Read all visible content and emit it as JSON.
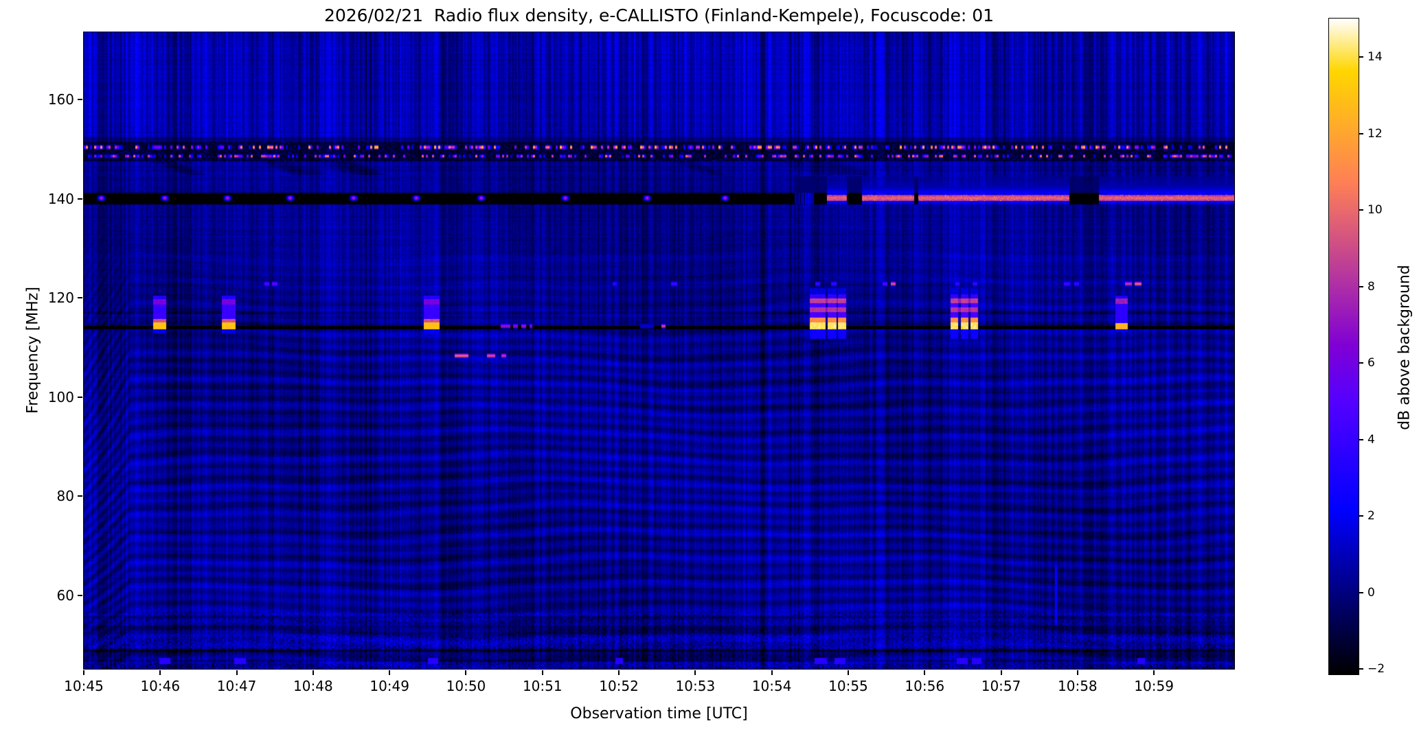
{
  "chart_data": {
    "type": "heatmap",
    "subtype": "radio-spectrogram",
    "title": "2026/02/21  Radio flux density, e-CALLISTO (Finland-Kempele), Focuscode: 01",
    "xlabel": "Observation time [UTC]",
    "ylabel": "Frequency [MHz]",
    "x_axis": {
      "start_label": "10:45",
      "range_minutes": [
        0,
        15.05
      ],
      "ticks": [
        {
          "label": "10:45",
          "t": 0
        },
        {
          "label": "10:46",
          "t": 1
        },
        {
          "label": "10:47",
          "t": 2
        },
        {
          "label": "10:48",
          "t": 3
        },
        {
          "label": "10:49",
          "t": 4
        },
        {
          "label": "10:50",
          "t": 5
        },
        {
          "label": "10:51",
          "t": 6
        },
        {
          "label": "10:52",
          "t": 7
        },
        {
          "label": "10:53",
          "t": 8
        },
        {
          "label": "10:54",
          "t": 9
        },
        {
          "label": "10:55",
          "t": 10
        },
        {
          "label": "10:56",
          "t": 11
        },
        {
          "label": "10:57",
          "t": 12
        },
        {
          "label": "10:58",
          "t": 13
        },
        {
          "label": "10:59",
          "t": 14
        }
      ]
    },
    "y_axis": {
      "range_mhz": [
        45.2,
        173.6
      ],
      "ticks": [
        {
          "label": "160",
          "f": 160
        },
        {
          "label": "140",
          "f": 140
        },
        {
          "label": "120",
          "f": 120
        },
        {
          "label": "100",
          "f": 100
        },
        {
          "label": "80",
          "f": 80
        },
        {
          "label": "60",
          "f": 60
        }
      ]
    },
    "colorbar": {
      "label": "dB above background",
      "colormap": "gnuplot2",
      "range_db": [
        -2.15,
        15.0
      ],
      "ticks": [
        {
          "label": "14",
          "v": 14
        },
        {
          "label": "12",
          "v": 12
        },
        {
          "label": "10",
          "v": 10
        },
        {
          "label": "8",
          "v": 8
        },
        {
          "label": "6",
          "v": 6
        },
        {
          "label": "4",
          "v": 4
        },
        {
          "label": "2",
          "v": 2
        },
        {
          "label": "0",
          "v": 0
        },
        {
          "label": "−2",
          "v": -2
        }
      ]
    },
    "features": {
      "background": {
        "base_db": 0.18,
        "stripe_db": 1.5,
        "grain_db": 1.05
      },
      "ripples": {
        "f_max": 137,
        "spacing_mhz": 2.55,
        "amp_db": 0.9
      },
      "top_band": {
        "f_min": 151.8,
        "extra_db": 0.5
      },
      "speckle_band": {
        "region_f": [
          147.55,
          151.45
        ],
        "base_db": -1.4,
        "rows": [
          {
            "f": [
              149.9,
              150.9
            ],
            "threshold": 0.5,
            "max_db": 13.0
          },
          {
            "f": [
              148.2,
              149.0
            ],
            "threshold": 0.58,
            "max_db": 10.5
          }
        ]
      },
      "dark_line_117": {
        "f": [
          116.7,
          117.3
        ],
        "dim_db": 0.55
      },
      "line_114": {
        "f": [
          113.65,
          114.45
        ],
        "db": -2.15
      },
      "band_140": {
        "f_range": [
          138.9,
          141.2
        ],
        "bright_core_f": [
          139.5,
          140.8
        ],
        "black_db": -2.1,
        "bright_db": 9.7,
        "blob_peak_db": 10.2,
        "halo_db": 2.4,
        "blob_times": [
          0.23,
          1.06,
          1.88,
          2.7,
          3.53,
          4.35,
          5.2,
          6.3,
          7.37,
          8.39
        ],
        "blob_sigma_min": 0.04,
        "segments": [
          {
            "t": [
              0,
              9.3
            ],
            "mode": "black_blobs"
          },
          {
            "t": [
              9.3,
              9.55
            ],
            "mode": "noisy_blue"
          },
          {
            "t": [
              9.55,
              9.72
            ],
            "mode": "black"
          },
          {
            "t": [
              9.72,
              9.98
            ],
            "mode": "bright"
          },
          {
            "t": [
              9.98,
              10.18
            ],
            "mode": "black"
          },
          {
            "t": [
              10.18,
              10.86
            ],
            "mode": "bright"
          },
          {
            "t": [
              10.86,
              10.92
            ],
            "mode": "black"
          },
          {
            "t": [
              10.92,
              12.89
            ],
            "mode": "bright"
          },
          {
            "t": [
              12.89,
              13.28
            ],
            "mode": "black"
          },
          {
            "t": [
              13.28,
              15.05
            ],
            "mode": "bright"
          }
        ]
      },
      "bursts": [
        {
          "times": [
            0.95,
            1.03
          ],
          "w": 0.045,
          "type": "weak"
        },
        {
          "times": [
            1.85,
            1.94
          ],
          "w": 0.045,
          "type": "weak"
        },
        {
          "times": [
            4.5,
            4.6
          ],
          "w": 0.05,
          "type": "weak"
        },
        {
          "times": [
            9.55,
            9.65,
            9.79,
            9.92
          ],
          "w": 0.055,
          "type": "strong"
        },
        {
          "times": [
            11.39,
            11.52,
            11.65
          ],
          "w": 0.05,
          "type": "strong"
        },
        {
          "times": [
            13.54,
            13.62
          ],
          "w": 0.04,
          "type": "medium"
        }
      ],
      "spots_123": {
        "f_range": [
          122.3,
          123.4
        ],
        "items": [
          {
            "t": [
              2.36,
              2.43
            ],
            "db": 5.0
          },
          {
            "t": [
              2.46,
              2.53
            ],
            "db": 5.5
          },
          {
            "t": [
              6.92,
              6.97
            ],
            "db": 3.8
          },
          {
            "t": [
              7.68,
              7.76
            ],
            "db": 4.5
          },
          {
            "t": [
              9.57,
              9.63
            ],
            "db": 4.2
          },
          {
            "t": [
              9.78,
              9.85
            ],
            "db": 4.2
          },
          {
            "t": [
              10.45,
              10.51
            ],
            "db": 5.0
          },
          {
            "t": [
              10.56,
              10.62
            ],
            "db": 9.5
          },
          {
            "t": [
              11.4,
              11.46
            ],
            "db": 4.2
          },
          {
            "t": [
              11.63,
              11.69
            ],
            "db": 4.2
          },
          {
            "t": [
              12.82,
              12.9
            ],
            "db": 4.5
          },
          {
            "t": [
              12.96,
              13.02
            ],
            "db": 4.2
          },
          {
            "t": [
              13.62,
              13.71
            ],
            "db": 8.5
          },
          {
            "t": [
              13.75,
              13.84
            ],
            "db": 10.0
          }
        ]
      },
      "dashes_108": {
        "f_range": [
          107.8,
          108.9
        ],
        "items": [
          {
            "t": [
              4.85,
              5.03
            ],
            "db": 8.5
          },
          {
            "t": [
              5.27,
              5.38
            ],
            "db": 7.8
          },
          {
            "t": [
              5.46,
              5.53
            ],
            "db": 7.0
          }
        ]
      },
      "line_dashes": {
        "f_range": [
          113.8,
          114.85
        ],
        "items": [
          {
            "t": [
              5.45,
              5.58
            ],
            "db": 7.2
          },
          {
            "t": [
              5.62,
              5.68
            ],
            "db": 6.8
          },
          {
            "t": [
              5.72,
              5.79
            ],
            "db": 7.4
          },
          {
            "t": [
              5.83,
              5.87
            ],
            "db": 6.5
          },
          {
            "t": [
              7.28,
              7.46
            ],
            "db": 1.4
          },
          {
            "t": [
              7.56,
              7.61
            ],
            "db": 9.0
          }
        ]
      },
      "bottom_dashes": {
        "f_range": [
          46.1,
          47.4
        ],
        "db": 3.4,
        "times": [
          [
            0.99,
            1.13
          ],
          [
            1.97,
            2.12
          ],
          [
            4.5,
            4.64
          ],
          [
            6.95,
            7.05
          ],
          [
            9.56,
            9.72
          ],
          [
            9.82,
            9.96
          ],
          [
            11.42,
            11.56
          ],
          [
            11.62,
            11.74
          ],
          [
            13.78,
            13.88
          ]
        ]
      },
      "streaks": [
        {
          "t": 12.72,
          "f": [
            54,
            66
          ],
          "db": 2.3
        }
      ]
    }
  }
}
